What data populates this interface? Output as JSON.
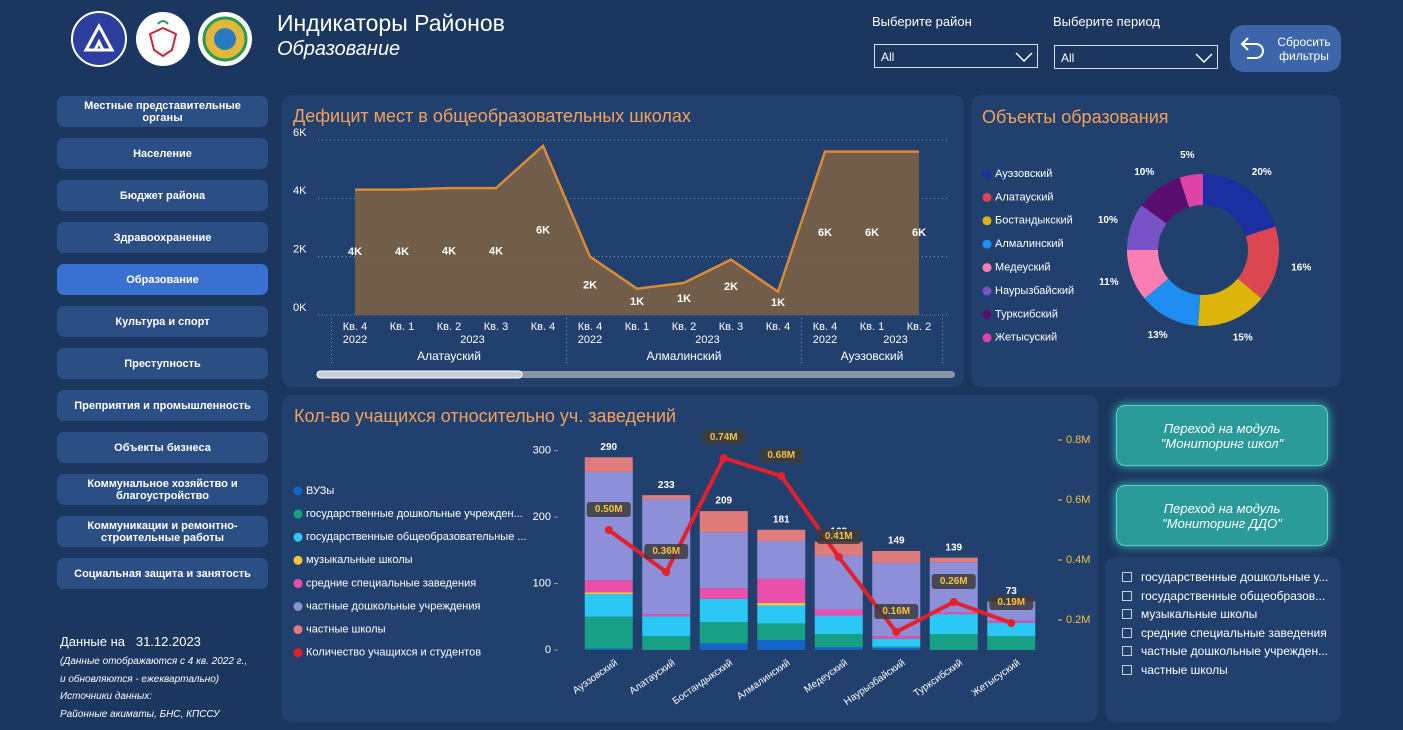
{
  "header": {
    "title": "Индикаторы Районов",
    "subtitle": "Образование"
  },
  "filters": [
    {
      "label": "Выберите район",
      "value": "All"
    },
    {
      "label": "Выберите период",
      "value": "All"
    }
  ],
  "reset_button": [
    "Сбросить",
    "фильтры"
  ],
  "nav": [
    {
      "label": "Местные представительные органы",
      "active": false
    },
    {
      "label": "Население",
      "active": false
    },
    {
      "label": "Бюджет района",
      "active": false
    },
    {
      "label": "Здравоохранение",
      "active": false
    },
    {
      "label": "Образование",
      "active": true
    },
    {
      "label": "Культура и спорт",
      "active": false
    },
    {
      "label": "Преступность",
      "active": false
    },
    {
      "label": "Преприятия и промышленность",
      "active": false
    },
    {
      "label": "Объекты бизнеса",
      "active": false
    },
    {
      "label": "Коммунальное хозяйство и благоустройство",
      "active": false
    },
    {
      "label": "Коммуникации и ремонтно-строительные работы",
      "active": false
    },
    {
      "label": "Социальная защита и занятость",
      "active": false
    }
  ],
  "footer": {
    "date_label": "Данные на",
    "date": "31.12.2023",
    "notes": [
      "(Данные отображаются  с 4 кв. 2022 г.,",
      "и обновляются  - ежеквартально)",
      "Источники данных:",
      "Районные акиматы, БНС, КПССУ"
    ]
  },
  "module_buttons": [
    [
      "Переход на модуль",
      "\"Мониторинг школ\""
    ],
    [
      "Переход на модуль",
      "\"Мониторинг ДДО\""
    ]
  ],
  "slicer": {
    "items": [
      "государственные дошкольные у...",
      "государственные общеобразов...",
      "музыкальные школы",
      "средние специальные заведения",
      "частные дошкольные учрежден...",
      "частные школы"
    ]
  },
  "chart_data": [
    {
      "type": "area",
      "title": "Дефицит мест в общеобразовательных школах",
      "color": "#7b6046",
      "line_color": "#d98b37",
      "groups": [
        {
          "name": "Алатауский",
          "years": [
            {
              "name": "2022",
              "quarters": [
                "Кв. 4"
              ]
            },
            {
              "name": "2023",
              "quarters": [
                "Кв. 1",
                "Кв. 2",
                "Кв. 3",
                "Кв. 4"
              ]
            }
          ]
        },
        {
          "name": "Алмалинский",
          "years": [
            {
              "name": "2022",
              "quarters": [
                "Кв. 4"
              ]
            },
            {
              "name": "2023",
              "quarters": [
                "Кв. 1",
                "Кв. 2",
                "Кв. 3",
                "Кв. 4"
              ]
            }
          ]
        },
        {
          "name": "Ауэзовский",
          "years": [
            {
              "name": "2022",
              "quarters": [
                "Кв. 4"
              ]
            },
            {
              "name": "2023",
              "quarters": [
                "Кв. 1",
                "Кв. 2"
              ]
            }
          ]
        }
      ],
      "values": [
        4300,
        4300,
        4350,
        4350,
        5800,
        2000,
        900,
        1100,
        1900,
        800,
        5600,
        5600,
        5600
      ],
      "value_labels": [
        "4K",
        "4K",
        "4K",
        "4K",
        "6K",
        "2K",
        "1K",
        "1K",
        "2K",
        "1K",
        "6K",
        "6K",
        "6K"
      ],
      "ylim": [
        0,
        6000
      ],
      "yticks": [
        {
          "value": 0,
          "label": "0K"
        },
        {
          "value": 2000,
          "label": "2K"
        },
        {
          "value": 4000,
          "label": "4K"
        },
        {
          "value": 6000,
          "label": "6K"
        }
      ],
      "grid": true
    },
    {
      "type": "donut",
      "title": "Объекты образования",
      "categories": [
        "Ауэзовский",
        "Алатауский",
        "Бостандыкский",
        "Алмалинский",
        "Медеуский",
        "Наурызбайский",
        "Турксибский",
        "Жетысуский"
      ],
      "values": [
        20,
        16,
        15,
        13,
        11,
        10,
        10,
        5
      ],
      "value_labels": [
        "20%",
        "16%",
        "15%",
        "13%",
        "11%",
        "10%",
        "10%",
        "5%"
      ],
      "colors": [
        "#1b2fa3",
        "#dc4650",
        "#dcb40c",
        "#1e8ff0",
        "#fb7fb2",
        "#7753c6",
        "#5a0f70",
        "#e043a8"
      ]
    },
    {
      "type": "bar-line",
      "title": "Кол-во учащихся относительно уч. заведений",
      "stacked": true,
      "categories": [
        "Ауэзовский",
        "Алатауский",
        "Бостандыкский",
        "Алмалинский",
        "Медеуский",
        "Наурызбайский",
        "Турксибский",
        "Жетысуский"
      ],
      "series": [
        {
          "name": "ВУЗы",
          "color": "#1565c8",
          "values": [
            2,
            0,
            10,
            15,
            4,
            3,
            0,
            0
          ]
        },
        {
          "name": "государственные дошкольные учрежден...",
          "color": "#17a085",
          "values": [
            48,
            21,
            32,
            25,
            20,
            2,
            24,
            21
          ]
        },
        {
          "name": "государственные общеобразовательные ...",
          "color": "#2cc8f5",
          "values": [
            34,
            30,
            35,
            27,
            28,
            12,
            30,
            20
          ]
        },
        {
          "name": "музыкальные школы",
          "color": "#f5c242",
          "values": [
            3,
            0,
            0,
            4,
            0,
            0,
            0,
            0
          ]
        },
        {
          "name": "средние специальные заведения",
          "color": "#e94fab",
          "values": [
            18,
            3,
            16,
            36,
            9,
            4,
            3,
            3
          ]
        },
        {
          "name": "частные дошкольные учреждения",
          "color": "#8d8fd9",
          "values": [
            163,
            173,
            84,
            57,
            81,
            110,
            75,
            26
          ]
        },
        {
          "name": "частные школы",
          "color": "#e07b7b",
          "values": [
            22,
            6,
            32,
            17,
            21,
            18,
            7,
            3
          ]
        },
        {
          "name": "Количество учащихся и студентов",
          "color": "#e3202c",
          "type": "line",
          "axis": "y2",
          "values": [
            500000,
            360000,
            740000,
            680000,
            410000,
            160000,
            260000,
            190000
          ],
          "value_labels": [
            "0.50M",
            "0.36M",
            "0.74M",
            "0.68M",
            "0.41M",
            "0.16M",
            "0.26M",
            "0.19M"
          ]
        }
      ],
      "totals": [
        290,
        233,
        209,
        181,
        163,
        149,
        139,
        73
      ],
      "ylim": [
        0,
        316
      ],
      "yticks": [
        0,
        100,
        200,
        300
      ],
      "y2lim": [
        100000,
        800000
      ],
      "y2ticks": [
        {
          "value": 200000,
          "label": "0.2M"
        },
        {
          "value": 400000,
          "label": "0.4M"
        },
        {
          "value": 600000,
          "label": "0.6M"
        },
        {
          "value": 800000,
          "label": "0.8M"
        }
      ]
    }
  ]
}
